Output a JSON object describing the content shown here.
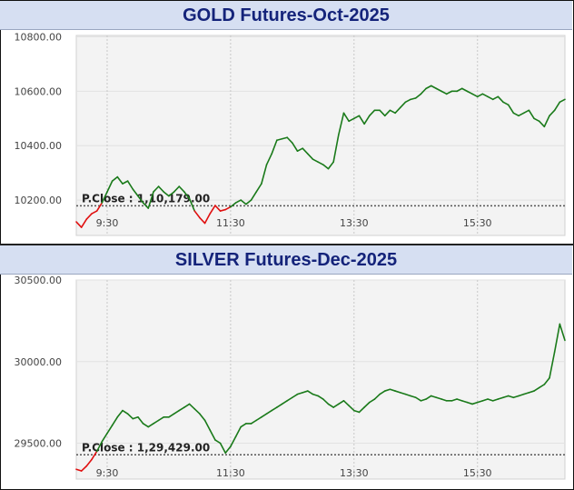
{
  "chart_data": [
    {
      "type": "line",
      "title": "GOLD Futures-Oct-2025",
      "x_ticks": [
        "9:30",
        "11:30",
        "13:30",
        "15:30"
      ],
      "y_ticks": [
        "10800.00",
        "10600.00",
        "10400.00",
        "10200.00"
      ],
      "ylim": [
        10070,
        10805
      ],
      "xlim": [
        "09:00",
        "16:55"
      ],
      "prev_close": {
        "label": "P.Close : 1,10,179.00",
        "value": 10179
      },
      "colors": {
        "above": "#1a7a1a",
        "below": "#e01010"
      },
      "series": [
        {
          "x": [
            "09:00",
            "09:05",
            "09:10",
            "09:15",
            "09:20",
            "09:25",
            "09:30",
            "09:35",
            "09:40",
            "09:45",
            "09:50",
            "09:55",
            "10:00",
            "10:05",
            "10:10",
            "10:15",
            "10:20",
            "10:25",
            "10:30",
            "10:35",
            "10:40",
            "10:45",
            "10:50",
            "10:55",
            "11:00",
            "11:05",
            "11:10",
            "11:15",
            "11:20",
            "11:25",
            "11:30",
            "11:35",
            "11:40",
            "11:45",
            "11:50",
            "11:55",
            "12:00",
            "12:05",
            "12:10",
            "12:15",
            "12:20",
            "12:25",
            "12:30",
            "12:35",
            "12:40",
            "12:45",
            "12:50",
            "12:55",
            "13:00",
            "13:05",
            "13:10",
            "13:15",
            "13:20",
            "13:25",
            "13:30",
            "13:35",
            "13:40",
            "13:45",
            "13:50",
            "13:55",
            "14:00",
            "14:05",
            "14:10",
            "14:15",
            "14:20",
            "14:25",
            "14:30",
            "14:35",
            "14:40",
            "14:45",
            "14:50",
            "14:55",
            "15:00",
            "15:05",
            "15:10",
            "15:15",
            "15:20",
            "15:25",
            "15:30",
            "15:35",
            "15:40",
            "15:45",
            "15:50",
            "15:55",
            "16:00",
            "16:05",
            "16:10",
            "16:15",
            "16:20",
            "16:25",
            "16:30",
            "16:35",
            "16:40",
            "16:45",
            "16:50",
            "16:55"
          ],
          "values": [
            10120,
            10100,
            10130,
            10150,
            10160,
            10190,
            10230,
            10270,
            10285,
            10260,
            10270,
            10240,
            10215,
            10190,
            10170,
            10230,
            10250,
            10230,
            10215,
            10230,
            10250,
            10230,
            10205,
            10160,
            10135,
            10115,
            10150,
            10180,
            10160,
            10165,
            10175,
            10190,
            10200,
            10185,
            10200,
            10230,
            10260,
            10330,
            10370,
            10420,
            10425,
            10430,
            10410,
            10380,
            10390,
            10370,
            10350,
            10340,
            10330,
            10315,
            10340,
            10440,
            10520,
            10490,
            10500,
            10510,
            10480,
            10510,
            10530,
            10530,
            10510,
            10530,
            10520,
            10540,
            10560,
            10570,
            10575,
            10590,
            10610,
            10620,
            10610,
            10600,
            10590,
            10600,
            10600,
            10610,
            10600,
            10590,
            10580,
            10590,
            10580,
            10570,
            10580,
            10560,
            10550,
            10520,
            10510,
            10520,
            10530,
            10500,
            10490,
            10470,
            10510,
            10530,
            10560,
            10570
          ]
        }
      ]
    },
    {
      "type": "line",
      "title": "SILVER Futures-Dec-2025",
      "x_ticks": [
        "9:30",
        "11:30",
        "13:30",
        "15:30"
      ],
      "y_ticks": [
        "30500.00",
        "30000.00",
        "29500.00"
      ],
      "ylim": [
        29280,
        30500
      ],
      "xlim": [
        "09:00",
        "16:55"
      ],
      "prev_close": {
        "label": "P.Close : 1,29,429.00",
        "value": 29429
      },
      "colors": {
        "above": "#1a7a1a",
        "below": "#e01010"
      },
      "series": [
        {
          "x": [
            "09:00",
            "09:05",
            "09:10",
            "09:15",
            "09:20",
            "09:25",
            "09:30",
            "09:35",
            "09:40",
            "09:45",
            "09:50",
            "09:55",
            "10:00",
            "10:05",
            "10:10",
            "10:15",
            "10:20",
            "10:25",
            "10:30",
            "10:35",
            "10:40",
            "10:45",
            "10:50",
            "10:55",
            "11:00",
            "11:05",
            "11:10",
            "11:15",
            "11:20",
            "11:25",
            "11:30",
            "11:35",
            "11:40",
            "11:45",
            "11:50",
            "11:55",
            "12:00",
            "12:05",
            "12:10",
            "12:15",
            "12:20",
            "12:25",
            "12:30",
            "12:35",
            "12:40",
            "12:45",
            "12:50",
            "12:55",
            "13:00",
            "13:05",
            "13:10",
            "13:15",
            "13:20",
            "13:25",
            "13:30",
            "13:35",
            "13:40",
            "13:45",
            "13:50",
            "13:55",
            "14:00",
            "14:05",
            "14:10",
            "14:15",
            "14:20",
            "14:25",
            "14:30",
            "14:35",
            "14:40",
            "14:45",
            "14:50",
            "14:55",
            "15:00",
            "15:05",
            "15:10",
            "15:15",
            "15:20",
            "15:25",
            "15:30",
            "15:35",
            "15:40",
            "15:45",
            "15:50",
            "15:55",
            "16:00",
            "16:05",
            "16:10",
            "16:15",
            "16:20",
            "16:25",
            "16:30",
            "16:35",
            "16:40",
            "16:45",
            "16:50",
            "16:55"
          ],
          "values": [
            29340,
            29330,
            29360,
            29400,
            29450,
            29510,
            29560,
            29610,
            29660,
            29700,
            29680,
            29650,
            29660,
            29620,
            29600,
            29620,
            29640,
            29660,
            29660,
            29680,
            29700,
            29720,
            29740,
            29710,
            29680,
            29640,
            29580,
            29520,
            29500,
            29440,
            29480,
            29540,
            29600,
            29620,
            29620,
            29640,
            29660,
            29680,
            29700,
            29720,
            29740,
            29760,
            29780,
            29800,
            29810,
            29820,
            29800,
            29790,
            29770,
            29740,
            29720,
            29740,
            29760,
            29730,
            29700,
            29690,
            29720,
            29750,
            29770,
            29800,
            29820,
            29830,
            29820,
            29810,
            29800,
            29790,
            29780,
            29760,
            29770,
            29790,
            29780,
            29770,
            29760,
            29760,
            29770,
            29760,
            29750,
            29740,
            29750,
            29760,
            29770,
            29760,
            29770,
            29780,
            29790,
            29780,
            29790,
            29800,
            29810,
            29820,
            29840,
            29860,
            29900,
            30060,
            30230,
            30130
          ]
        }
      ]
    }
  ]
}
